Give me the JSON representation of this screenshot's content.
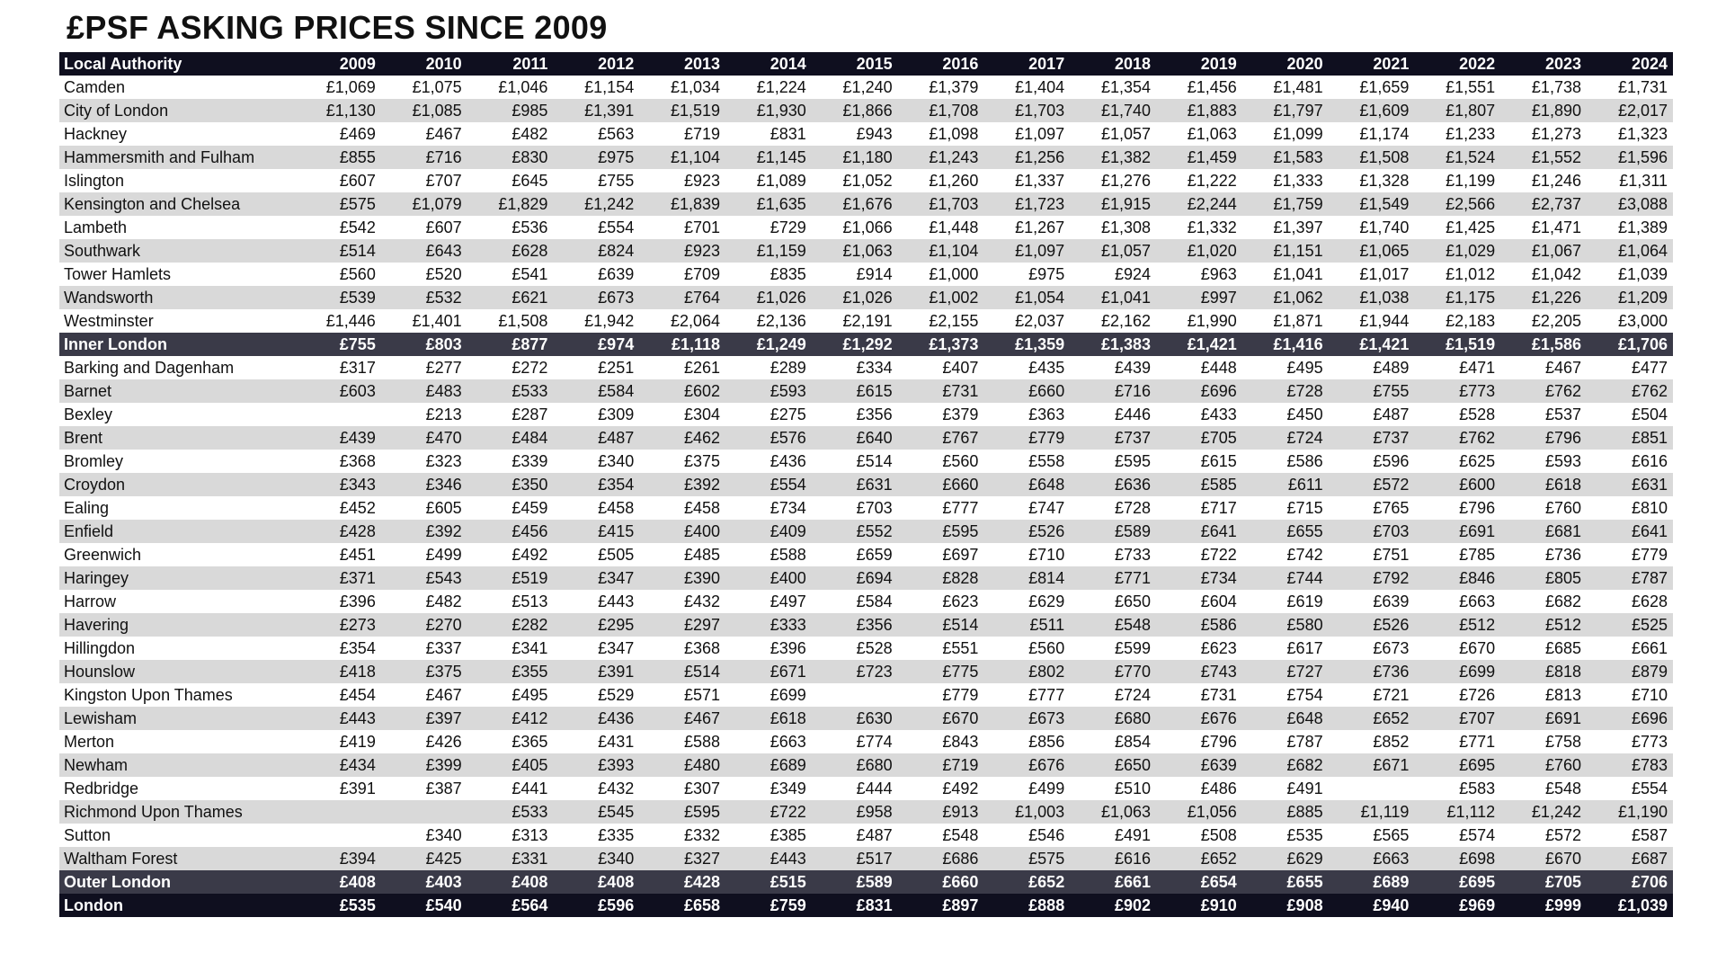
{
  "title": "£PSF ASKING PRICES SINCE 2009",
  "chart_data": {
    "type": "table",
    "title": "£PSF ASKING PRICES SINCE 2009",
    "header": [
      "Local Authority",
      "2009",
      "2010",
      "2011",
      "2012",
      "2013",
      "2014",
      "2015",
      "2016",
      "2017",
      "2018",
      "2019",
      "2020",
      "2021",
      "2022",
      "2023",
      "2024"
    ],
    "rows": [
      {
        "name": "Camden",
        "style": "normal",
        "values": [
          "£1,069",
          "£1,075",
          "£1,046",
          "£1,154",
          "£1,034",
          "£1,224",
          "£1,240",
          "£1,379",
          "£1,404",
          "£1,354",
          "£1,456",
          "£1,481",
          "£1,659",
          "£1,551",
          "£1,738",
          "£1,731"
        ]
      },
      {
        "name": "City of London",
        "style": "normal",
        "values": [
          "£1,130",
          "£1,085",
          "£985",
          "£1,391",
          "£1,519",
          "£1,930",
          "£1,866",
          "£1,708",
          "£1,703",
          "£1,740",
          "£1,883",
          "£1,797",
          "£1,609",
          "£1,807",
          "£1,890",
          "£2,017"
        ]
      },
      {
        "name": "Hackney",
        "style": "normal",
        "values": [
          "£469",
          "£467",
          "£482",
          "£563",
          "£719",
          "£831",
          "£943",
          "£1,098",
          "£1,097",
          "£1,057",
          "£1,063",
          "£1,099",
          "£1,174",
          "£1,233",
          "£1,273",
          "£1,323"
        ]
      },
      {
        "name": "Hammersmith and Fulham",
        "style": "normal",
        "values": [
          "£855",
          "£716",
          "£830",
          "£975",
          "£1,104",
          "£1,145",
          "£1,180",
          "£1,243",
          "£1,256",
          "£1,382",
          "£1,459",
          "£1,583",
          "£1,508",
          "£1,524",
          "£1,552",
          "£1,596"
        ]
      },
      {
        "name": "Islington",
        "style": "normal",
        "values": [
          "£607",
          "£707",
          "£645",
          "£755",
          "£923",
          "£1,089",
          "£1,052",
          "£1,260",
          "£1,337",
          "£1,276",
          "£1,222",
          "£1,333",
          "£1,328",
          "£1,199",
          "£1,246",
          "£1,311"
        ]
      },
      {
        "name": "Kensington and Chelsea",
        "style": "normal",
        "values": [
          "£575",
          "£1,079",
          "£1,829",
          "£1,242",
          "£1,839",
          "£1,635",
          "£1,676",
          "£1,703",
          "£1,723",
          "£1,915",
          "£2,244",
          "£1,759",
          "£1,549",
          "£2,566",
          "£2,737",
          "£3,088"
        ]
      },
      {
        "name": "Lambeth",
        "style": "normal",
        "values": [
          "£542",
          "£607",
          "£536",
          "£554",
          "£701",
          "£729",
          "£1,066",
          "£1,448",
          "£1,267",
          "£1,308",
          "£1,332",
          "£1,397",
          "£1,740",
          "£1,425",
          "£1,471",
          "£1,389"
        ]
      },
      {
        "name": "Southwark",
        "style": "normal",
        "values": [
          "£514",
          "£643",
          "£628",
          "£824",
          "£923",
          "£1,159",
          "£1,063",
          "£1,104",
          "£1,097",
          "£1,057",
          "£1,020",
          "£1,151",
          "£1,065",
          "£1,029",
          "£1,067",
          "£1,064"
        ]
      },
      {
        "name": "Tower Hamlets",
        "style": "normal",
        "values": [
          "£560",
          "£520",
          "£541",
          "£639",
          "£709",
          "£835",
          "£914",
          "£1,000",
          "£975",
          "£924",
          "£963",
          "£1,041",
          "£1,017",
          "£1,012",
          "£1,042",
          "£1,039"
        ]
      },
      {
        "name": "Wandsworth",
        "style": "normal",
        "values": [
          "£539",
          "£532",
          "£621",
          "£673",
          "£764",
          "£1,026",
          "£1,026",
          "£1,002",
          "£1,054",
          "£1,041",
          "£997",
          "£1,062",
          "£1,038",
          "£1,175",
          "£1,226",
          "£1,209"
        ]
      },
      {
        "name": "Westminster",
        "style": "normal",
        "values": [
          "£1,446",
          "£1,401",
          "£1,508",
          "£1,942",
          "£2,064",
          "£2,136",
          "£2,191",
          "£2,155",
          "£2,037",
          "£2,162",
          "£1,990",
          "£1,871",
          "£1,944",
          "£2,183",
          "£2,205",
          "£3,000"
        ]
      },
      {
        "name": "Inner London",
        "style": "subtotal",
        "values": [
          "£755",
          "£803",
          "£877",
          "£974",
          "£1,118",
          "£1,249",
          "£1,292",
          "£1,373",
          "£1,359",
          "£1,383",
          "£1,421",
          "£1,416",
          "£1,421",
          "£1,519",
          "£1,586",
          "£1,706"
        ]
      },
      {
        "name": "Barking and Dagenham",
        "style": "normal",
        "values": [
          "£317",
          "£277",
          "£272",
          "£251",
          "£261",
          "£289",
          "£334",
          "£407",
          "£435",
          "£439",
          "£448",
          "£495",
          "£489",
          "£471",
          "£467",
          "£477"
        ]
      },
      {
        "name": "Barnet",
        "style": "normal",
        "values": [
          "£603",
          "£483",
          "£533",
          "£584",
          "£602",
          "£593",
          "£615",
          "£731",
          "£660",
          "£716",
          "£696",
          "£728",
          "£755",
          "£773",
          "£762",
          "£762"
        ]
      },
      {
        "name": "Bexley",
        "style": "normal",
        "values": [
          "",
          "£213",
          "£287",
          "£309",
          "£304",
          "£275",
          "£356",
          "£379",
          "£363",
          "£446",
          "£433",
          "£450",
          "£487",
          "£528",
          "£537",
          "£504"
        ]
      },
      {
        "name": "Brent",
        "style": "normal",
        "values": [
          "£439",
          "£470",
          "£484",
          "£487",
          "£462",
          "£576",
          "£640",
          "£767",
          "£779",
          "£737",
          "£705",
          "£724",
          "£737",
          "£762",
          "£796",
          "£851"
        ]
      },
      {
        "name": "Bromley",
        "style": "normal",
        "values": [
          "£368",
          "£323",
          "£339",
          "£340",
          "£375",
          "£436",
          "£514",
          "£560",
          "£558",
          "£595",
          "£615",
          "£586",
          "£596",
          "£625",
          "£593",
          "£616"
        ]
      },
      {
        "name": "Croydon",
        "style": "normal",
        "values": [
          "£343",
          "£346",
          "£350",
          "£354",
          "£392",
          "£554",
          "£631",
          "£660",
          "£648",
          "£636",
          "£585",
          "£611",
          "£572",
          "£600",
          "£618",
          "£631"
        ]
      },
      {
        "name": "Ealing",
        "style": "normal",
        "values": [
          "£452",
          "£605",
          "£459",
          "£458",
          "£458",
          "£734",
          "£703",
          "£777",
          "£747",
          "£728",
          "£717",
          "£715",
          "£765",
          "£796",
          "£760",
          "£810"
        ]
      },
      {
        "name": "Enfield",
        "style": "normal",
        "values": [
          "£428",
          "£392",
          "£456",
          "£415",
          "£400",
          "£409",
          "£552",
          "£595",
          "£526",
          "£589",
          "£641",
          "£655",
          "£703",
          "£691",
          "£681",
          "£641"
        ]
      },
      {
        "name": "Greenwich",
        "style": "normal",
        "values": [
          "£451",
          "£499",
          "£492",
          "£505",
          "£485",
          "£588",
          "£659",
          "£697",
          "£710",
          "£733",
          "£722",
          "£742",
          "£751",
          "£785",
          "£736",
          "£779"
        ]
      },
      {
        "name": "Haringey",
        "style": "normal",
        "values": [
          "£371",
          "£543",
          "£519",
          "£347",
          "£390",
          "£400",
          "£694",
          "£828",
          "£814",
          "£771",
          "£734",
          "£744",
          "£792",
          "£846",
          "£805",
          "£787"
        ]
      },
      {
        "name": "Harrow",
        "style": "normal",
        "values": [
          "£396",
          "£482",
          "£513",
          "£443",
          "£432",
          "£497",
          "£584",
          "£623",
          "£629",
          "£650",
          "£604",
          "£619",
          "£639",
          "£663",
          "£682",
          "£628"
        ]
      },
      {
        "name": "Havering",
        "style": "normal",
        "values": [
          "£273",
          "£270",
          "£282",
          "£295",
          "£297",
          "£333",
          "£356",
          "£514",
          "£511",
          "£548",
          "£586",
          "£580",
          "£526",
          "£512",
          "£512",
          "£525"
        ]
      },
      {
        "name": "Hillingdon",
        "style": "normal",
        "values": [
          "£354",
          "£337",
          "£341",
          "£347",
          "£368",
          "£396",
          "£528",
          "£551",
          "£560",
          "£599",
          "£623",
          "£617",
          "£673",
          "£670",
          "£685",
          "£661"
        ]
      },
      {
        "name": "Hounslow",
        "style": "normal",
        "values": [
          "£418",
          "£375",
          "£355",
          "£391",
          "£514",
          "£671",
          "£723",
          "£775",
          "£802",
          "£770",
          "£743",
          "£727",
          "£736",
          "£699",
          "£818",
          "£879"
        ]
      },
      {
        "name": "Kingston Upon Thames",
        "style": "normal",
        "values": [
          "£454",
          "£467",
          "£495",
          "£529",
          "£571",
          "£699",
          "",
          "£779",
          "£777",
          "£724",
          "£731",
          "£754",
          "£721",
          "£726",
          "£813",
          "£710"
        ]
      },
      {
        "name": "Lewisham",
        "style": "normal",
        "values": [
          "£443",
          "£397",
          "£412",
          "£436",
          "£467",
          "£618",
          "£630",
          "£670",
          "£673",
          "£680",
          "£676",
          "£648",
          "£652",
          "£707",
          "£691",
          "£696"
        ]
      },
      {
        "name": "Merton",
        "style": "normal",
        "values": [
          "£419",
          "£426",
          "£365",
          "£431",
          "£588",
          "£663",
          "£774",
          "£843",
          "£856",
          "£854",
          "£796",
          "£787",
          "£852",
          "£771",
          "£758",
          "£773"
        ]
      },
      {
        "name": "Newham",
        "style": "normal",
        "values": [
          "£434",
          "£399",
          "£405",
          "£393",
          "£480",
          "£689",
          "£680",
          "£719",
          "£676",
          "£650",
          "£639",
          "£682",
          "£671",
          "£695",
          "£760",
          "£783"
        ]
      },
      {
        "name": "Redbridge",
        "style": "normal",
        "values": [
          "£391",
          "£387",
          "£441",
          "£432",
          "£307",
          "£349",
          "£444",
          "£492",
          "£499",
          "£510",
          "£486",
          "£491",
          "",
          "£583",
          "£548",
          "£554"
        ]
      },
      {
        "name": "Richmond Upon Thames",
        "style": "normal",
        "values": [
          "",
          "",
          "£533",
          "£545",
          "£595",
          "£722",
          "£958",
          "£913",
          "£1,003",
          "£1,063",
          "£1,056",
          "£885",
          "£1,119",
          "£1,112",
          "£1,242",
          "£1,190"
        ]
      },
      {
        "name": "Sutton",
        "style": "normal",
        "values": [
          "",
          "£340",
          "£313",
          "£335",
          "£332",
          "£385",
          "£487",
          "£548",
          "£546",
          "£491",
          "£508",
          "£535",
          "£565",
          "£574",
          "£572",
          "£587"
        ]
      },
      {
        "name": "Waltham Forest",
        "style": "normal",
        "values": [
          "£394",
          "£425",
          "£331",
          "£340",
          "£327",
          "£443",
          "£517",
          "£686",
          "£575",
          "£616",
          "£652",
          "£629",
          "£663",
          "£698",
          "£670",
          "£687"
        ]
      },
      {
        "name": "Outer London",
        "style": "subtotal",
        "values": [
          "£408",
          "£403",
          "£408",
          "£408",
          "£428",
          "£515",
          "£589",
          "£660",
          "£652",
          "£661",
          "£654",
          "£655",
          "£689",
          "£695",
          "£705",
          "£706"
        ]
      },
      {
        "name": "London",
        "style": "total",
        "values": [
          "£535",
          "£540",
          "£564",
          "£596",
          "£658",
          "£759",
          "£831",
          "£897",
          "£888",
          "£902",
          "£910",
          "£908",
          "£940",
          "£969",
          "£999",
          "£1,039"
        ]
      }
    ]
  }
}
